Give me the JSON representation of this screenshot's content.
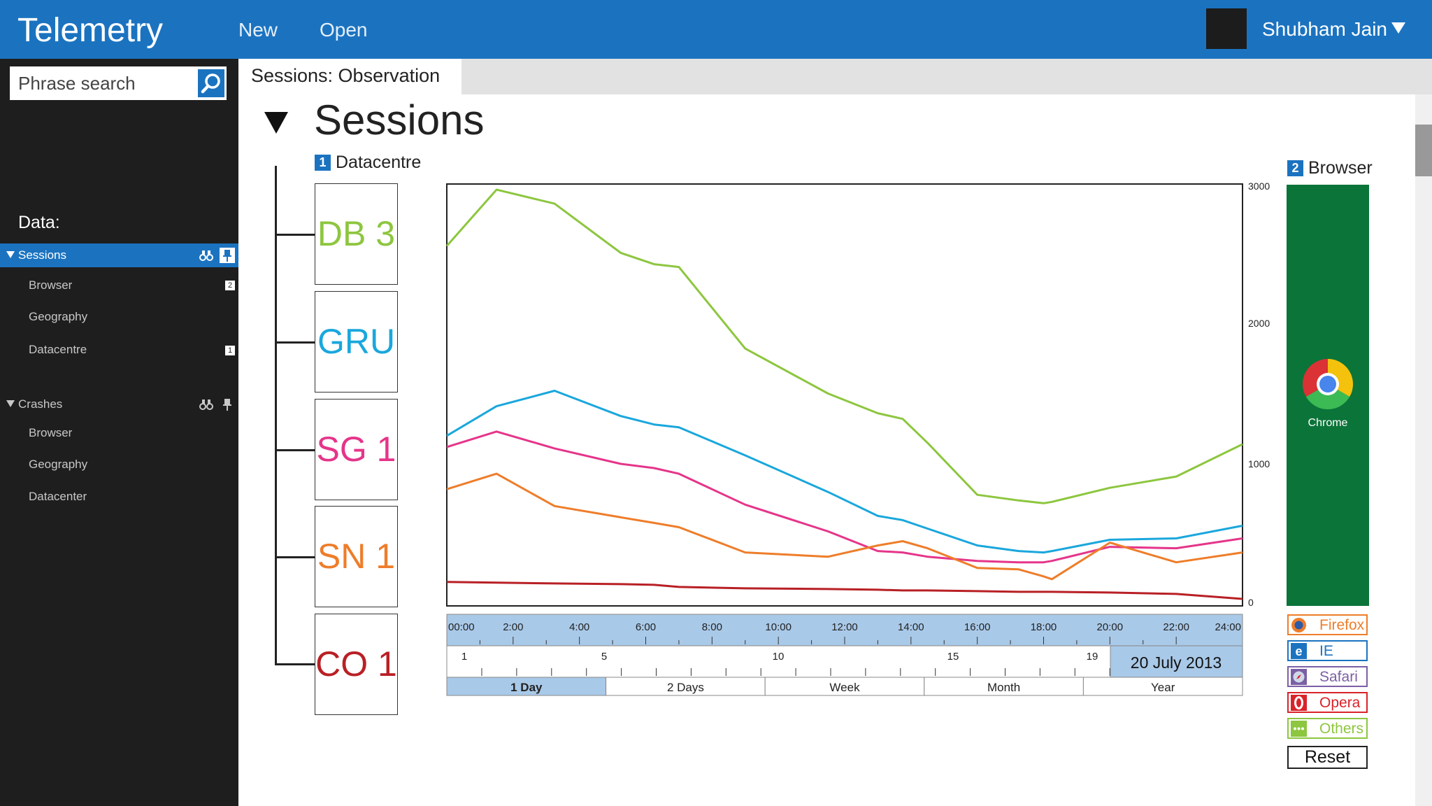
{
  "app": {
    "title": "Telemetry"
  },
  "nav": {
    "new": "New",
    "open": "Open"
  },
  "user": {
    "name": "Shubham Jain"
  },
  "search": {
    "placeholder": "Phrase search"
  },
  "sidebar": {
    "data_label": "Data:",
    "groups": [
      {
        "label": "Sessions",
        "active": true,
        "items": [
          {
            "label": "Browser",
            "badge": "2"
          },
          {
            "label": "Geography",
            "badge": ""
          },
          {
            "label": "Datacentre",
            "badge": "1"
          }
        ]
      },
      {
        "label": "Crashes",
        "active": false,
        "items": [
          {
            "label": "Browser"
          },
          {
            "label": "Geography"
          },
          {
            "label": "Datacenter"
          }
        ]
      }
    ]
  },
  "tab": {
    "label": "Sessions: Observation"
  },
  "section": {
    "title": "Sessions"
  },
  "datacentre": {
    "badge": "1",
    "label": "Datacentre",
    "items": [
      {
        "label": "DB 3",
        "color": "#8dc63f"
      },
      {
        "label": "GRU",
        "color": "#1aa7dc"
      },
      {
        "label": "SG 1",
        "color": "#e5358a"
      },
      {
        "label": "SN 1",
        "color": "#ee7d2a"
      },
      {
        "label": "CO 1",
        "color": "#b82025"
      }
    ]
  },
  "browser_panel": {
    "badge": "2",
    "label": "Browser",
    "selected": "Chrome",
    "selected_color": "#0b7439",
    "others": [
      {
        "label": "Firefox",
        "color": "#ee7d2a",
        "icon": "firefox-icon"
      },
      {
        "label": "IE",
        "color": "#1b73c0",
        "icon": "ie-icon"
      },
      {
        "label": "Safari",
        "color": "#7b5fa5",
        "icon": "safari-icon"
      },
      {
        "label": "Opera",
        "color": "#d9232a",
        "icon": "opera-icon"
      },
      {
        "label": "Others",
        "color": "#8dc63f",
        "icon": "more-icon"
      }
    ],
    "reset": "Reset"
  },
  "chart_data": {
    "type": "line",
    "x": [
      0,
      1.5,
      3.25,
      5.25,
      6.25,
      7,
      9,
      11.5,
      13,
      13.75,
      14.5,
      16,
      17.25,
      18,
      18.25,
      20,
      22,
      24
    ],
    "xlabels": [
      "00:00",
      "2:00",
      "4:00",
      "6:00",
      "8:00",
      "10:00",
      "12:00",
      "14:00",
      "16:00",
      "18:00",
      "20:00",
      "22:00",
      "24:00"
    ],
    "ylim": [
      0,
      3000
    ],
    "yticks": [
      0,
      1000,
      2000,
      3000
    ],
    "series": [
      {
        "name": "DB 3",
        "color": "#8dc63f",
        "values": [
          2550,
          2950,
          2850,
          2500,
          2420,
          2400,
          1820,
          1500,
          1360,
          1320,
          1150,
          780,
          740,
          720,
          730,
          830,
          910,
          1140
        ]
      },
      {
        "name": "GRU",
        "color": "#1aa7dc",
        "values": [
          1200,
          1410,
          1520,
          1340,
          1280,
          1260,
          1060,
          800,
          630,
          600,
          540,
          420,
          380,
          370,
          380,
          460,
          470,
          560
        ]
      },
      {
        "name": "SG 1",
        "color": "#e5358a",
        "values": [
          1120,
          1230,
          1110,
          1000,
          970,
          930,
          710,
          520,
          380,
          370,
          340,
          310,
          300,
          300,
          310,
          410,
          400,
          470
        ]
      },
      {
        "name": "SN 1",
        "color": "#ee7d2a",
        "values": [
          820,
          930,
          700,
          620,
          580,
          550,
          370,
          340,
          420,
          450,
          400,
          260,
          250,
          200,
          180,
          440,
          300,
          370
        ]
      },
      {
        "name": "CO 1",
        "color": "#b82025",
        "values": [
          160,
          155,
          150,
          145,
          140,
          125,
          115,
          110,
          105,
          100,
          100,
          95,
          90,
          90,
          90,
          85,
          75,
          40
        ]
      }
    ]
  },
  "timeline": {
    "day_ticks": [
      "1",
      "5",
      "10",
      "15",
      "19"
    ],
    "date": "20 July 2013",
    "ranges": [
      "1 Day",
      "2 Days",
      "Week",
      "Month",
      "Year"
    ],
    "selected_range": "1 Day"
  },
  "colors": {
    "brand": "#1b73c0",
    "sidebar": "#1e1e1e"
  }
}
